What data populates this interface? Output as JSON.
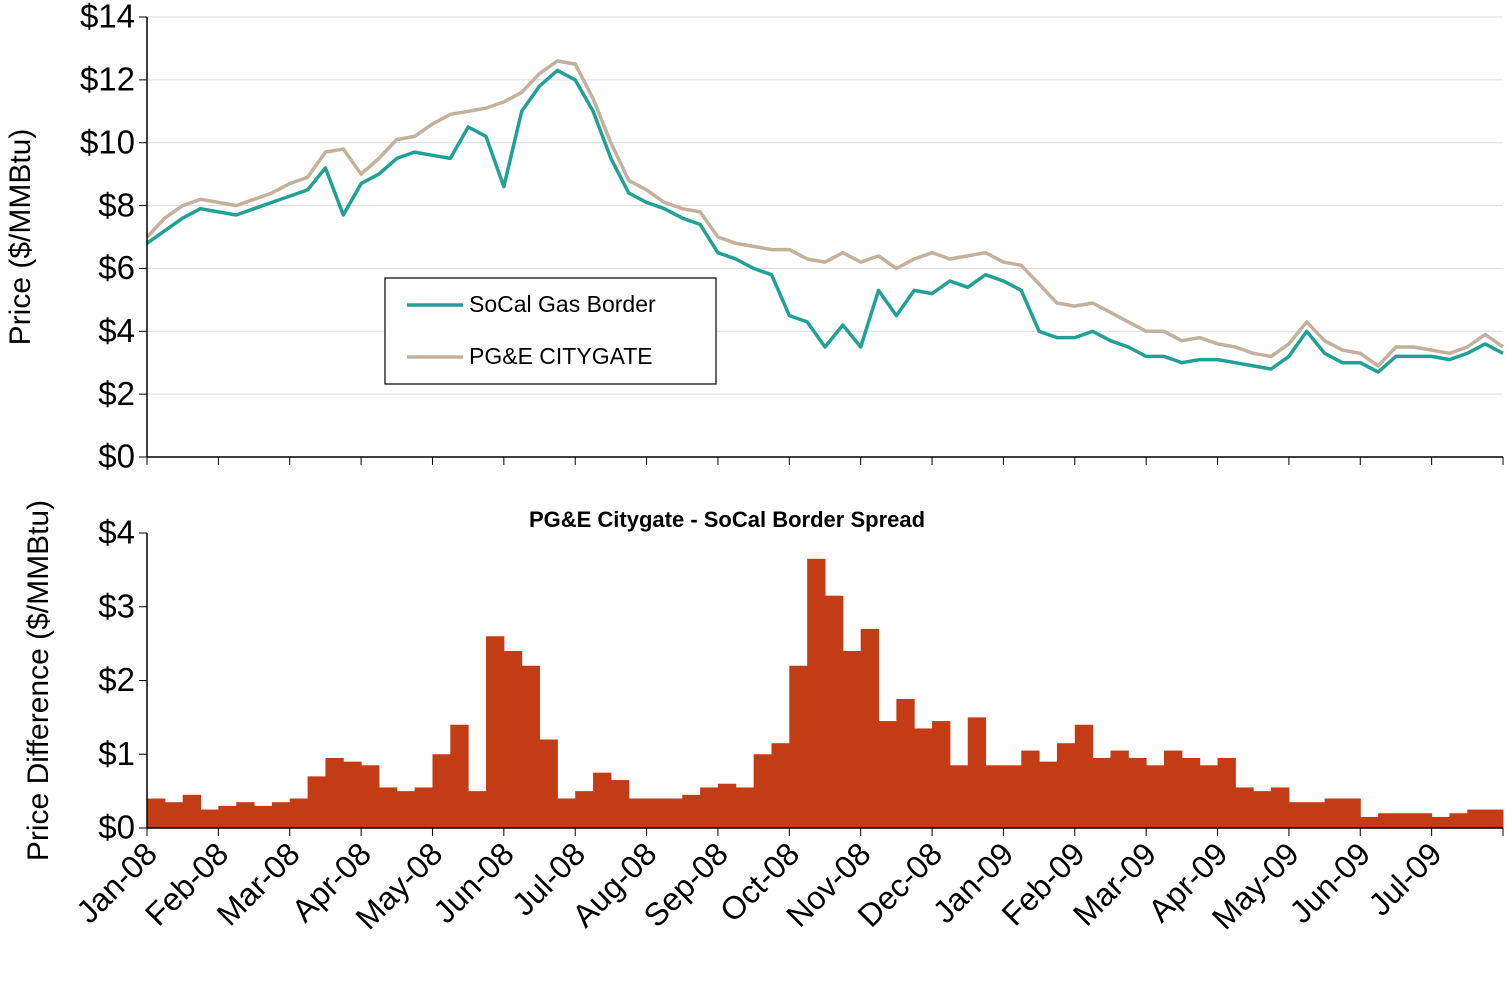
{
  "chart_data": [
    {
      "type": "line",
      "ylabel": "Price ($/MMBtu)",
      "xlim": [
        0,
        19
      ],
      "ylim": [
        0,
        14
      ],
      "yticks": [
        {
          "value": 0,
          "label": "$0"
        },
        {
          "value": 2,
          "label": "$2"
        },
        {
          "value": 4,
          "label": "$4"
        },
        {
          "value": 6,
          "label": "$6"
        },
        {
          "value": 8,
          "label": "$8"
        },
        {
          "value": 10,
          "label": "$10"
        },
        {
          "value": 12,
          "label": "$12"
        },
        {
          "value": 14,
          "label": "$14"
        }
      ],
      "grid": true,
      "legend": "center-left",
      "x": [
        0,
        0.25,
        0.5,
        0.75,
        1,
        1.25,
        1.5,
        1.75,
        2,
        2.25,
        2.5,
        2.75,
        3,
        3.25,
        3.5,
        3.75,
        4,
        4.25,
        4.5,
        4.75,
        5,
        5.25,
        5.5,
        5.75,
        6,
        6.25,
        6.5,
        6.75,
        7,
        7.25,
        7.5,
        7.75,
        8,
        8.25,
        8.5,
        8.75,
        9,
        9.25,
        9.5,
        9.75,
        10,
        10.25,
        10.5,
        10.75,
        11,
        11.25,
        11.5,
        11.75,
        12,
        12.25,
        12.5,
        12.75,
        13,
        13.25,
        13.5,
        13.75,
        14,
        14.25,
        14.5,
        14.75,
        15,
        15.25,
        15.5,
        15.75,
        16,
        16.25,
        16.5,
        16.75,
        17,
        17.25,
        17.5,
        17.75,
        18,
        18.25,
        18.5,
        18.75,
        19
      ],
      "series": [
        {
          "name": "SoCal Gas Border",
          "color": "#20a196",
          "values": [
            6.8,
            7.2,
            7.6,
            7.9,
            7.8,
            7.7,
            7.9,
            8.1,
            8.3,
            8.5,
            9.2,
            7.7,
            8.7,
            9.0,
            9.5,
            9.7,
            9.6,
            9.5,
            10.5,
            10.2,
            8.6,
            11.0,
            11.8,
            12.3,
            12.0,
            11.0,
            9.5,
            8.4,
            8.1,
            7.9,
            7.6,
            7.4,
            6.5,
            6.3,
            6.0,
            5.8,
            4.5,
            4.3,
            3.5,
            4.2,
            3.5,
            5.3,
            4.5,
            5.3,
            5.2,
            5.6,
            5.4,
            5.8,
            5.6,
            5.3,
            4.0,
            3.8,
            3.8,
            4.0,
            3.7,
            3.5,
            3.2,
            3.2,
            3.0,
            3.1,
            3.1,
            3.0,
            2.9,
            2.8,
            3.2,
            4.0,
            3.3,
            3.0,
            3.0,
            2.7,
            3.2,
            3.2,
            3.2,
            3.1,
            3.3,
            3.6,
            3.3
          ]
        },
        {
          "name": "PG&E CITYGATE",
          "color": "#c4b19b",
          "values": [
            7.0,
            7.6,
            8.0,
            8.2,
            8.1,
            8.0,
            8.2,
            8.4,
            8.7,
            8.9,
            9.7,
            9.8,
            9.0,
            9.5,
            10.1,
            10.2,
            10.6,
            10.9,
            11.0,
            11.1,
            11.3,
            11.6,
            12.2,
            12.6,
            12.5,
            11.4,
            10.0,
            8.8,
            8.5,
            8.1,
            7.9,
            7.8,
            7.0,
            6.8,
            6.7,
            6.6,
            6.6,
            6.3,
            6.2,
            6.5,
            6.2,
            6.4,
            6.0,
            6.3,
            6.5,
            6.3,
            6.4,
            6.5,
            6.2,
            6.1,
            5.5,
            4.9,
            4.8,
            4.9,
            4.6,
            4.3,
            4.0,
            4.0,
            3.7,
            3.8,
            3.6,
            3.5,
            3.3,
            3.2,
            3.6,
            4.3,
            3.7,
            3.4,
            3.3,
            2.9,
            3.5,
            3.5,
            3.4,
            3.3,
            3.5,
            3.9,
            3.5
          ]
        }
      ]
    },
    {
      "type": "bar",
      "title": "PG&E Citygate - SoCal Border Spread",
      "ylabel": "Price Difference ($/MMBtu)",
      "xlim": [
        0,
        19
      ],
      "xticks": [
        {
          "value": 0,
          "label": "Jan-08"
        },
        {
          "value": 1,
          "label": "Feb-08"
        },
        {
          "value": 2,
          "label": "Mar-08"
        },
        {
          "value": 3,
          "label": "Apr-08"
        },
        {
          "value": 4,
          "label": "May-08"
        },
        {
          "value": 5,
          "label": "Jun-08"
        },
        {
          "value": 6,
          "label": "Jul-08"
        },
        {
          "value": 7,
          "label": "Aug-08"
        },
        {
          "value": 8,
          "label": "Sep-08"
        },
        {
          "value": 9,
          "label": "Oct-08"
        },
        {
          "value": 10,
          "label": "Nov-08"
        },
        {
          "value": 11,
          "label": "Dec-08"
        },
        {
          "value": 12,
          "label": "Jan-09"
        },
        {
          "value": 13,
          "label": "Feb-09"
        },
        {
          "value": 14,
          "label": "Mar-09"
        },
        {
          "value": 15,
          "label": "Apr-09"
        },
        {
          "value": 16,
          "label": "May-09"
        },
        {
          "value": 17,
          "label": "Jun-09"
        },
        {
          "value": 18,
          "label": "Jul-09"
        }
      ],
      "ylim": [
        0,
        4
      ],
      "yticks": [
        {
          "value": 0,
          "label": "$0"
        },
        {
          "value": 1,
          "label": "$1"
        },
        {
          "value": 2,
          "label": "$2"
        },
        {
          "value": 3,
          "label": "$3"
        },
        {
          "value": 4,
          "label": "$4"
        }
      ],
      "grid": false,
      "color": "#c33c15",
      "x": [
        0,
        0.25,
        0.5,
        0.75,
        1,
        1.25,
        1.5,
        1.75,
        2,
        2.25,
        2.5,
        2.75,
        3,
        3.25,
        3.5,
        3.75,
        4,
        4.25,
        4.5,
        4.75,
        5,
        5.25,
        5.5,
        5.75,
        6,
        6.25,
        6.5,
        6.75,
        7,
        7.25,
        7.5,
        7.75,
        8,
        8.25,
        8.5,
        8.75,
        9,
        9.25,
        9.5,
        9.75,
        10,
        10.25,
        10.5,
        10.75,
        11,
        11.25,
        11.5,
        11.75,
        12,
        12.25,
        12.5,
        12.75,
        13,
        13.25,
        13.5,
        13.75,
        14,
        14.25,
        14.5,
        14.75,
        15,
        15.25,
        15.5,
        15.75,
        16,
        16.25,
        16.5,
        16.75,
        17,
        17.25,
        17.5,
        17.75,
        18,
        18.25,
        18.5,
        18.75
      ],
      "values": [
        0.4,
        0.35,
        0.45,
        0.25,
        0.3,
        0.35,
        0.3,
        0.35,
        0.4,
        0.7,
        0.95,
        0.9,
        0.85,
        0.55,
        0.5,
        0.55,
        1.0,
        1.4,
        0.5,
        2.6,
        2.4,
        2.2,
        1.2,
        0.4,
        0.5,
        0.75,
        0.65,
        0.4,
        0.4,
        0.4,
        0.45,
        0.55,
        0.6,
        0.55,
        1.0,
        1.15,
        2.2,
        3.65,
        3.15,
        2.4,
        2.7,
        1.45,
        1.75,
        1.35,
        1.45,
        0.85,
        1.5,
        0.85,
        0.85,
        1.05,
        0.9,
        1.15,
        1.4,
        0.95,
        1.05,
        0.95,
        0.85,
        1.05,
        0.95,
        0.85,
        0.95,
        0.55,
        0.5,
        0.55,
        0.35,
        0.35,
        0.4,
        0.4,
        0.15,
        0.2,
        0.2,
        0.2,
        0.15,
        0.2,
        0.25,
        0.25
      ]
    }
  ]
}
